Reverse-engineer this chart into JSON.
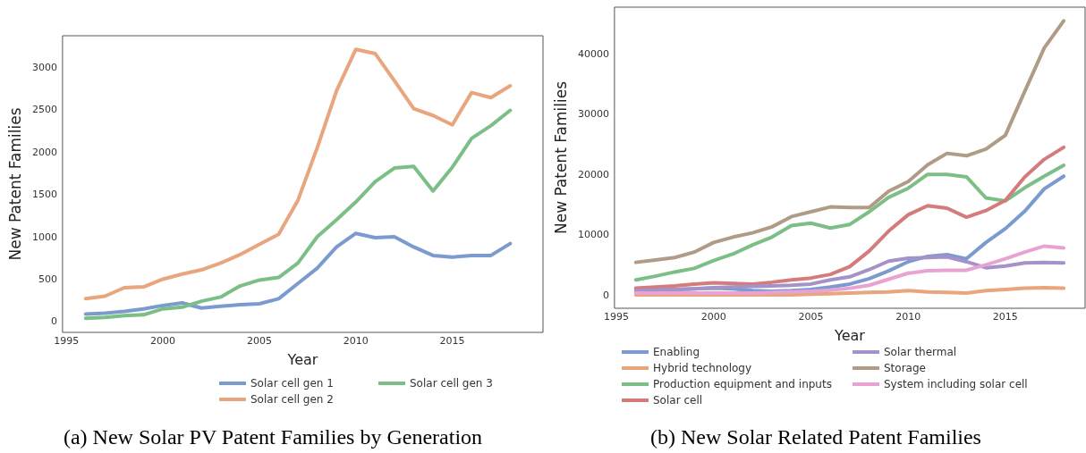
{
  "chart_data": [
    {
      "type": "line",
      "title": "(a) New Solar PV Patent Families by Generation",
      "xlabel": "Year",
      "ylabel": "New Patent Families",
      "x": [
        1996,
        1997,
        1998,
        1999,
        2000,
        2001,
        2002,
        2003,
        2004,
        2005,
        2006,
        2007,
        2008,
        2009,
        2010,
        2011,
        2012,
        2013,
        2014,
        2015,
        2016,
        2017,
        2018
      ],
      "series": [
        {
          "name": "Solar cell gen 1",
          "color": "#7b9bcf",
          "values": [
            90,
            100,
            120,
            150,
            190,
            220,
            160,
            180,
            200,
            210,
            270,
            450,
            630,
            880,
            1040,
            990,
            1000,
            880,
            780,
            760,
            780,
            780,
            920
          ]
        },
        {
          "name": "Solar cell gen 2",
          "color": "#e8a57e",
          "values": [
            270,
            300,
            400,
            410,
            500,
            560,
            610,
            690,
            790,
            910,
            1030,
            1430,
            2050,
            2720,
            3210,
            3160,
            2840,
            2510,
            2430,
            2320,
            2700,
            2640,
            2780
          ]
        },
        {
          "name": "Solar cell gen 3",
          "color": "#7cbf86",
          "values": [
            40,
            50,
            70,
            80,
            150,
            170,
            240,
            290,
            420,
            490,
            520,
            690,
            1000,
            1200,
            1410,
            1650,
            1810,
            1830,
            1540,
            1820,
            2160,
            2310,
            2490
          ]
        }
      ],
      "xlim": [
        1994.8,
        2019.7
      ],
      "xticks": [
        1995,
        2000,
        2005,
        2010,
        2015
      ],
      "ylim": [
        -127,
        3370
      ],
      "yticks": [
        0,
        500,
        1000,
        1500,
        2000,
        2500,
        3000
      ],
      "grid": false,
      "legend": "bottom",
      "marker": "none",
      "line_style": "solid"
    },
    {
      "type": "line",
      "title": "(b) New Solar Related Patent Families",
      "xlabel": "Year",
      "ylabel": "New Patent Families",
      "x": [
        1996,
        1997,
        1998,
        1999,
        2000,
        2001,
        2002,
        2003,
        2004,
        2005,
        2006,
        2007,
        2008,
        2009,
        2010,
        2011,
        2012,
        2013,
        2014,
        2015,
        2016,
        2017,
        2018
      ],
      "series": [
        {
          "name": "Enabling",
          "color": "#7b9bcf",
          "values": [
            700,
            800,
            900,
            1000,
            1100,
            1000,
            700,
            600,
            700,
            900,
            1300,
            1800,
            2700,
            4000,
            5500,
            6400,
            6700,
            6000,
            8700,
            11000,
            13900,
            17600,
            19700
          ]
        },
        {
          "name": "Hybrid technology",
          "color": "#e8a57e",
          "values": [
            0,
            0,
            0,
            0,
            0,
            0,
            0,
            0,
            0,
            100,
            200,
            300,
            400,
            500,
            700,
            500,
            400,
            300,
            700,
            900,
            1100,
            1200,
            1100
          ]
        },
        {
          "name": "Production equipment and inputs",
          "color": "#7cbf86",
          "values": [
            2500,
            3100,
            3800,
            4400,
            5700,
            6800,
            8300,
            9600,
            11500,
            11900,
            11100,
            11700,
            13800,
            16200,
            17700,
            20000,
            20000,
            19600,
            16100,
            15600,
            17800,
            19700,
            21500
          ]
        },
        {
          "name": "Solar cell",
          "color": "#d47c7c",
          "values": [
            1100,
            1300,
            1500,
            1800,
            2000,
            1900,
            1800,
            2100,
            2500,
            2800,
            3400,
            4700,
            7300,
            10600,
            13300,
            14800,
            14400,
            12900,
            14000,
            15700,
            19600,
            22500,
            24500
          ]
        },
        {
          "name": "Solar thermal",
          "color": "#a592c8",
          "values": [
            700,
            800,
            900,
            1000,
            1200,
            1300,
            1400,
            1500,
            1600,
            1800,
            2500,
            3000,
            4200,
            5600,
            6100,
            6200,
            6300,
            5500,
            4500,
            4800,
            5300,
            5400,
            5300
          ]
        },
        {
          "name": "Storage",
          "color": "#b09c86",
          "values": [
            5400,
            5800,
            6200,
            7100,
            8700,
            9600,
            10300,
            11300,
            13000,
            13800,
            14600,
            14500,
            14500,
            17200,
            18800,
            21600,
            23500,
            23100,
            24200,
            26500,
            33800,
            41000,
            45500
          ]
        },
        {
          "name": "System including solar cell",
          "color": "#e8a3d3",
          "values": [
            300,
            300,
            300,
            300,
            300,
            300,
            300,
            400,
            500,
            600,
            800,
            1100,
            1600,
            2600,
            3600,
            4000,
            4100,
            4100,
            5000,
            6000,
            7100,
            8100,
            7800
          ]
        }
      ],
      "xlim": [
        1994.9,
        2019.1
      ],
      "xticks": [
        1995,
        2000,
        2005,
        2010,
        2015
      ],
      "ylim": [
        -2220,
        47770
      ],
      "yticks": [
        0,
        10000,
        20000,
        30000,
        40000
      ],
      "grid": false,
      "legend": "bottom",
      "marker": "none",
      "line_style": "solid"
    }
  ]
}
